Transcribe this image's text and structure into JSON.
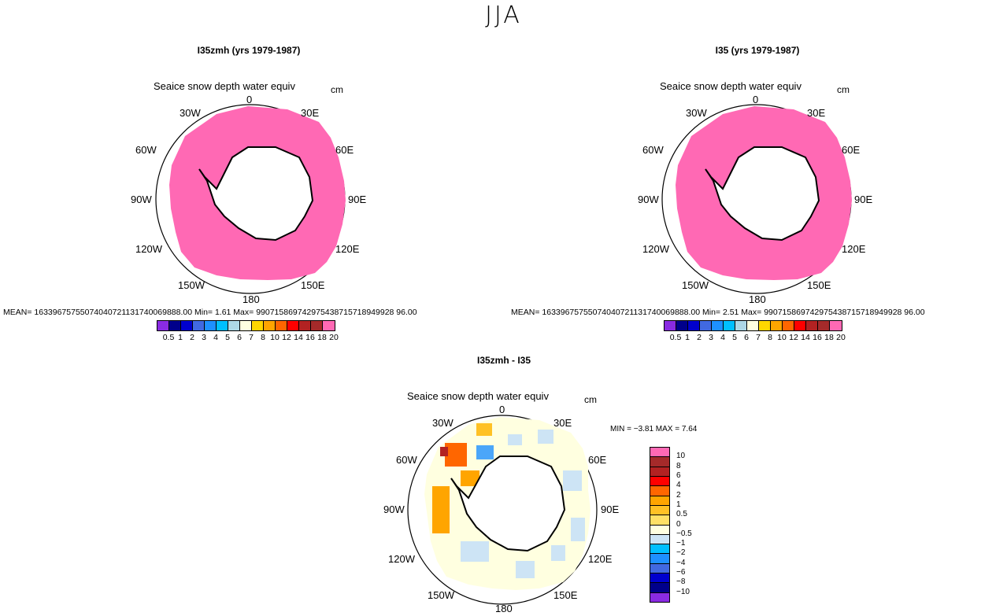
{
  "figure_title": "JJA",
  "left_panel": {
    "title": "I35zmh (yrs 1979-1987)",
    "variable": "Seaice snow depth water equiv",
    "units": "cm",
    "stats": "MEAN= 16339675755074040721131740069888.00   Min=   1.61   Max= 990715869742975438715718949928 96.00"
  },
  "right_panel": {
    "title": "I35 (yrs 1979-1987)",
    "variable": "Seaice snow depth water equiv",
    "units": "cm",
    "stats": "MEAN= 16339675755074040721131740069888.00   Min=   2.51   Max= 990715869742975438715718949928 96.00"
  },
  "diff_panel": {
    "title": "I35zmh - I35",
    "variable": "Seaice snow depth water equiv",
    "units": "cm",
    "minmax": "MIN =   −3.81  MAX =    7.64"
  },
  "longitude_labels": {
    "n": "0",
    "ne": "30E",
    "e1": "60E",
    "e2": "90E",
    "e3": "120E",
    "e4": "150E",
    "s": "180",
    "w4": "150W",
    "w3": "120W",
    "w2": "90W",
    "w1": "60W",
    "nw": "30W"
  },
  "abs_colorbar": {
    "colors": [
      "#8a2be2",
      "#00008b",
      "#0000cd",
      "#4169e1",
      "#1e90ff",
      "#00bfff",
      "#add8e6",
      "#ffffe0",
      "#ffd700",
      "#ffa500",
      "#ff6600",
      "#ff0000",
      "#b22222",
      "#a52a2a",
      "#ff69b4"
    ],
    "labels": [
      "0.5",
      "1",
      "2",
      "3",
      "4",
      "5",
      "6",
      "7",
      "8",
      "10",
      "12",
      "14",
      "16",
      "18",
      "20"
    ]
  },
  "diff_colorbar": {
    "colors_top_down": [
      "#ff69b4",
      "#a52a2a",
      "#b22222",
      "#ff0000",
      "#ff6600",
      "#ffa500",
      "#ffc125",
      "#ffe066",
      "#ffffe0",
      "#cde4f5",
      "#00bfff",
      "#1e90ff",
      "#4169e1",
      "#0000cd",
      "#00008b",
      "#8a2be2"
    ],
    "labels_top_down": [
      "10",
      "8",
      "6",
      "4",
      "2",
      "1",
      "0.5",
      "0",
      "−0.5",
      "−1",
      "−2",
      "−4",
      "−6",
      "−8",
      "−10"
    ]
  },
  "map_colors": {
    "abs_fill": "#ff69b4",
    "diff_base": "#ffffe0",
    "coast": "#000000"
  }
}
